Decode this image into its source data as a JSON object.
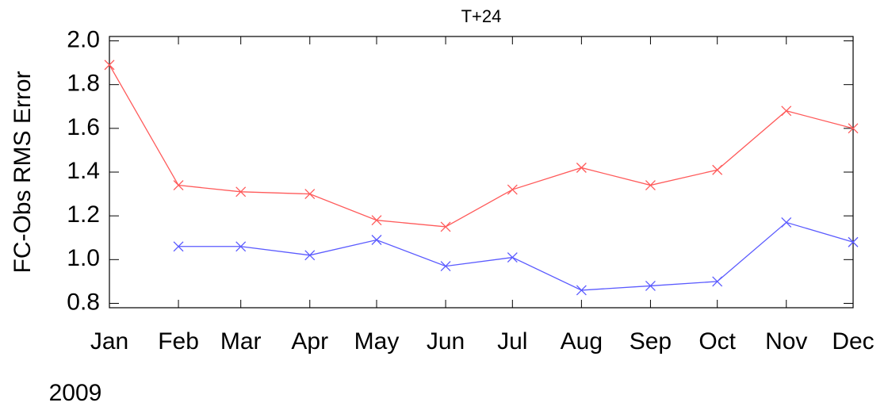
{
  "chart_data": {
    "type": "line",
    "title": "T+24",
    "ylabel": "FC-Obs RMS Error",
    "year_label": "2009",
    "x": [
      "2009-01",
      "2009-02",
      "2009-03",
      "2009-04",
      "2009-05",
      "2009-06",
      "2009-07",
      "2009-08",
      "2009-09",
      "2009-10",
      "2009-11",
      "2009-12"
    ],
    "xtick_labels": [
      "Jan",
      "Feb",
      "Mar",
      "Apr",
      "May",
      "Jun",
      "Jul",
      "Aug",
      "Sep",
      "Oct",
      "Nov",
      "Dec"
    ],
    "xlim": [
      "2009-01",
      "2009-12"
    ],
    "ylim": [
      0.78,
      2.02
    ],
    "yticks": [
      0.8,
      {
        "value": 1.0,
        "label": "1.0"
      },
      1.2,
      1.4,
      1.6,
      1.8,
      {
        "value": 2.0,
        "label": "2.0"
      }
    ],
    "series": [
      {
        "color": "#ff5a5a",
        "values": [
          1.89,
          1.34,
          1.31,
          1.3,
          1.18,
          1.15,
          1.32,
          1.42,
          1.34,
          1.41,
          1.68,
          1.6
        ]
      },
      {
        "color": "#5a5aff",
        "values": [
          null,
          1.06,
          1.06,
          1.02,
          1.09,
          0.97,
          1.01,
          0.86,
          0.88,
          0.9,
          1.17,
          1.08
        ]
      }
    ]
  }
}
